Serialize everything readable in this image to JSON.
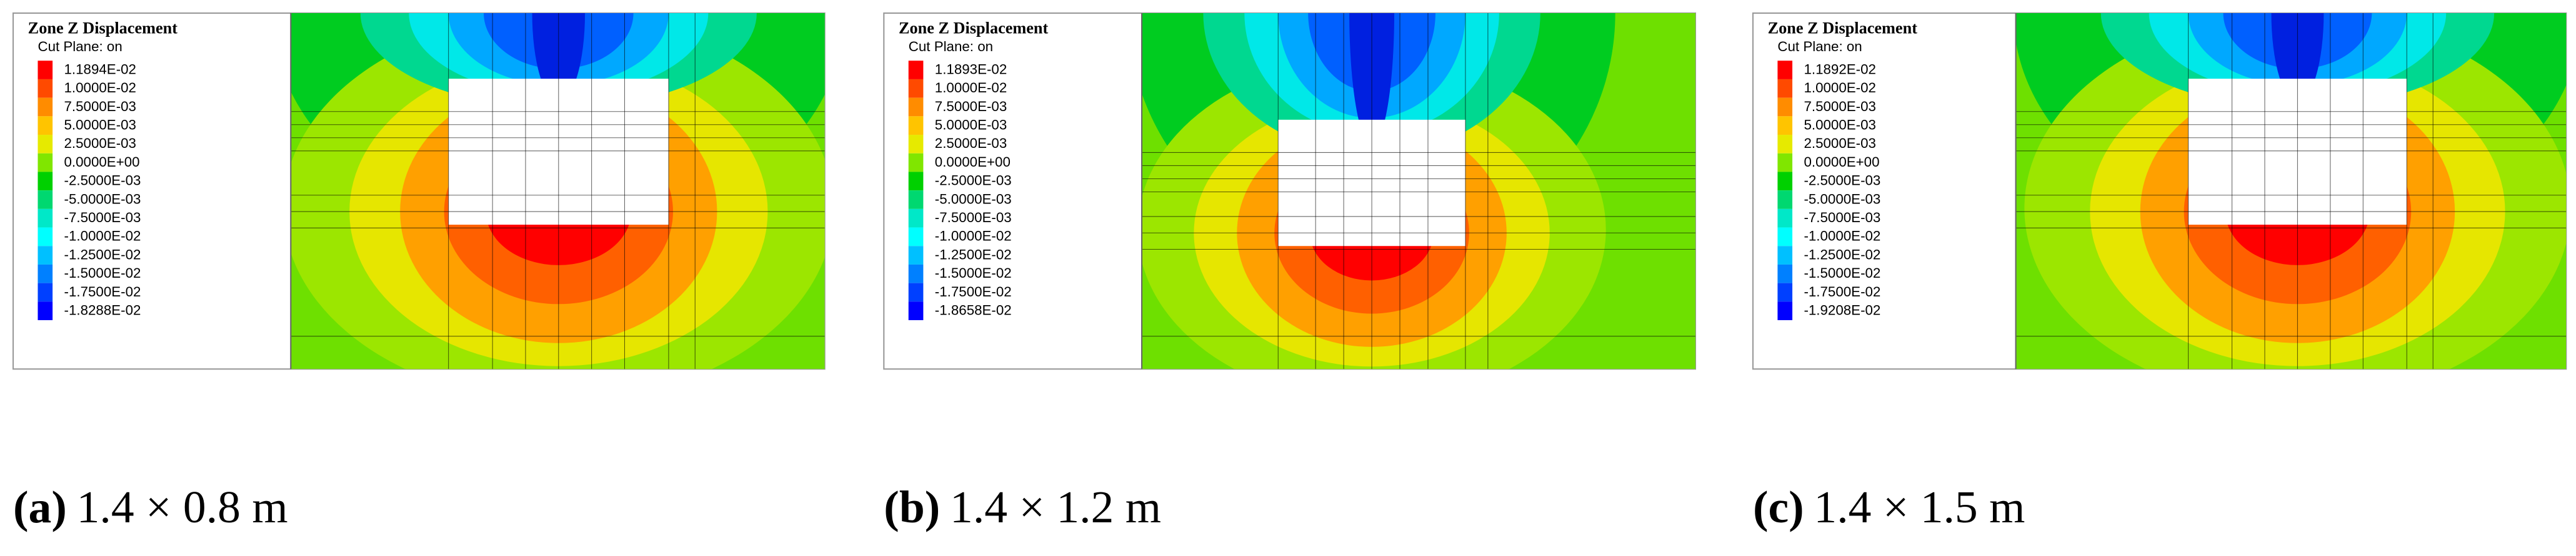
{
  "panels": [
    {
      "title": "Zone Z Displacement",
      "subtitle": "Cut Plane: on",
      "legend": [
        {
          "label": "1.1894E-02",
          "color": "#ff0000"
        },
        {
          "label": "1.0000E-02",
          "color": "#ff4a00"
        },
        {
          "label": "7.5000E-03",
          "color": "#ff8c00"
        },
        {
          "label": "5.0000E-03",
          "color": "#ffc400"
        },
        {
          "label": "2.5000E-03",
          "color": "#e6ea00"
        },
        {
          "label": "0.0000E+00",
          "color": "#80e600"
        },
        {
          "label": "-2.5000E-03",
          "color": "#00d000"
        },
        {
          "label": "-5.0000E-03",
          "color": "#00d870"
        },
        {
          "label": "-7.5000E-03",
          "color": "#00e8c8"
        },
        {
          "label": "-1.0000E-02",
          "color": "#00ffff"
        },
        {
          "label": "-1.2500E-02",
          "color": "#00c0ff"
        },
        {
          "label": "-1.5000E-02",
          "color": "#0080ff"
        },
        {
          "label": "-1.7500E-02",
          "color": "#0040ff"
        },
        {
          "label": "-1.8288E-02",
          "color": "#0000ff"
        }
      ],
      "caption": {
        "label": "(a)",
        "text": "1.4 × 0.8 m"
      }
    },
    {
      "title": "Zone Z Displacement",
      "subtitle": "Cut Plane: on",
      "legend": [
        {
          "label": "1.1893E-02",
          "color": "#ff0000"
        },
        {
          "label": "1.0000E-02",
          "color": "#ff4a00"
        },
        {
          "label": "7.5000E-03",
          "color": "#ff8c00"
        },
        {
          "label": "5.0000E-03",
          "color": "#ffc400"
        },
        {
          "label": "2.5000E-03",
          "color": "#e6ea00"
        },
        {
          "label": "0.0000E+00",
          "color": "#80e600"
        },
        {
          "label": "-2.5000E-03",
          "color": "#00d000"
        },
        {
          "label": "-5.0000E-03",
          "color": "#00d870"
        },
        {
          "label": "-7.5000E-03",
          "color": "#00e8c8"
        },
        {
          "label": "-1.0000E-02",
          "color": "#00ffff"
        },
        {
          "label": "-1.2500E-02",
          "color": "#00c0ff"
        },
        {
          "label": "-1.5000E-02",
          "color": "#0080ff"
        },
        {
          "label": "-1.7500E-02",
          "color": "#0040ff"
        },
        {
          "label": "-1.8658E-02",
          "color": "#0000ff"
        }
      ],
      "caption": {
        "label": "(b)",
        "text": "1.4 × 1.2 m"
      }
    },
    {
      "title": "Zone Z Displacement",
      "subtitle": "Cut Plane: on",
      "legend": [
        {
          "label": "1.1892E-02",
          "color": "#ff0000"
        },
        {
          "label": "1.0000E-02",
          "color": "#ff4a00"
        },
        {
          "label": "7.5000E-03",
          "color": "#ff8c00"
        },
        {
          "label": "5.0000E-03",
          "color": "#ffc400"
        },
        {
          "label": "2.5000E-03",
          "color": "#e6ea00"
        },
        {
          "label": "0.0000E+00",
          "color": "#80e600"
        },
        {
          "label": "-2.5000E-03",
          "color": "#00d000"
        },
        {
          "label": "-5.0000E-03",
          "color": "#00d870"
        },
        {
          "label": "-7.5000E-03",
          "color": "#00e8c8"
        },
        {
          "label": "-1.0000E-02",
          "color": "#00ffff"
        },
        {
          "label": "-1.2500E-02",
          "color": "#00c0ff"
        },
        {
          "label": "-1.5000E-02",
          "color": "#0080ff"
        },
        {
          "label": "-1.7500E-02",
          "color": "#0040ff"
        },
        {
          "label": "-1.9208E-02",
          "color": "#0000ff"
        }
      ],
      "caption": {
        "label": "(c)",
        "text": "1.4 × 1.5 m"
      }
    }
  ]
}
